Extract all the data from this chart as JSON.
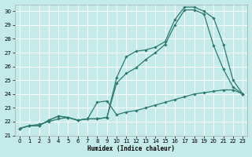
{
  "xlabel": "Humidex (Indice chaleur)",
  "xlim": [
    -0.5,
    23.5
  ],
  "ylim": [
    21,
    30.5
  ],
  "xticks": [
    0,
    1,
    2,
    3,
    4,
    5,
    6,
    7,
    8,
    9,
    10,
    11,
    12,
    13,
    14,
    15,
    16,
    17,
    18,
    19,
    20,
    21,
    22,
    23
  ],
  "yticks": [
    21,
    22,
    23,
    24,
    25,
    26,
    27,
    28,
    29,
    30
  ],
  "bg_color": "#c5eaea",
  "grid_color": "#ffffff",
  "line_color": "#2d7a6e",
  "line1_x": [
    0,
    1,
    2,
    3,
    4,
    5,
    6,
    7,
    8,
    9,
    10,
    11,
    12,
    13,
    14,
    15,
    16,
    17,
    18,
    19,
    20,
    21,
    22,
    23
  ],
  "line1_y": [
    21.5,
    21.7,
    21.7,
    22.1,
    22.4,
    22.3,
    22.1,
    22.2,
    22.2,
    22.3,
    25.2,
    26.7,
    27.1,
    27.2,
    27.4,
    27.8,
    29.4,
    30.3,
    30.3,
    30.0,
    29.5,
    27.6,
    25.0,
    24.0
  ],
  "line2_x": [
    0,
    1,
    2,
    3,
    4,
    5,
    6,
    7,
    8,
    9,
    10,
    11,
    12,
    13,
    14,
    15,
    16,
    17,
    18,
    19,
    20,
    21,
    22,
    23
  ],
  "line2_y": [
    21.5,
    21.7,
    21.7,
    22.1,
    22.4,
    22.3,
    22.1,
    22.2,
    22.2,
    22.3,
    24.8,
    25.5,
    25.9,
    26.5,
    27.0,
    27.6,
    29.0,
    30.1,
    30.1,
    29.8,
    27.5,
    25.8,
    24.5,
    24.0
  ],
  "line3_x": [
    0,
    1,
    2,
    3,
    4,
    5,
    6,
    7,
    8,
    9,
    10,
    11,
    12,
    13,
    14,
    15,
    16,
    17,
    18,
    19,
    20,
    21,
    22,
    23
  ],
  "line3_y": [
    21.5,
    21.7,
    21.8,
    22.0,
    22.2,
    22.3,
    22.1,
    22.2,
    23.4,
    23.5,
    22.5,
    22.7,
    22.8,
    23.0,
    23.2,
    23.4,
    23.6,
    23.8,
    24.0,
    24.1,
    24.2,
    24.3,
    24.3,
    24.0
  ]
}
